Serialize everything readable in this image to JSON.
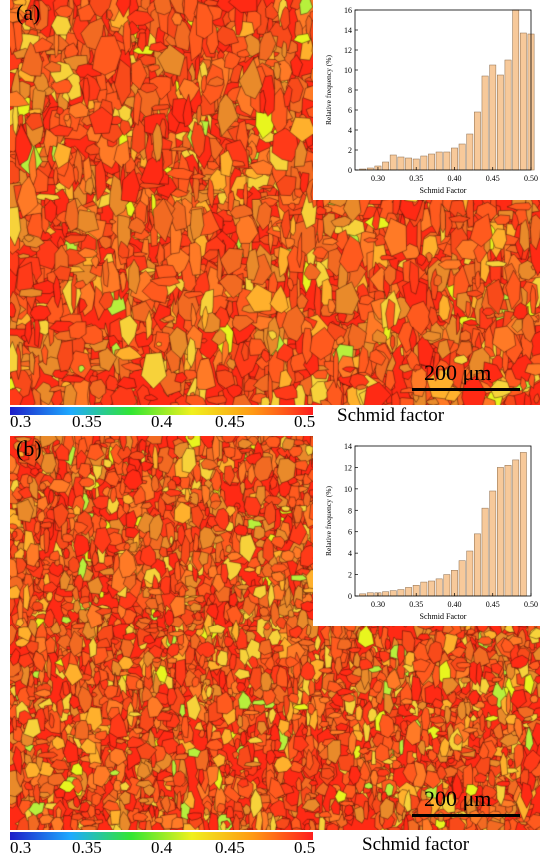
{
  "panels": [
    {
      "label": "(a)",
      "scale_bar": "200 μm",
      "chart_data": {
        "type": "bar",
        "x": [
          0.28,
          0.29,
          0.3,
          0.31,
          0.32,
          0.33,
          0.34,
          0.35,
          0.36,
          0.37,
          0.38,
          0.39,
          0.4,
          0.41,
          0.42,
          0.43,
          0.44,
          0.45,
          0.46,
          0.47,
          0.48,
          0.49,
          0.5
        ],
        "values": [
          0.1,
          0.2,
          0.4,
          0.8,
          1.5,
          1.3,
          1.2,
          1.1,
          1.4,
          1.6,
          1.8,
          1.8,
          2.2,
          2.6,
          3.6,
          5.8,
          9.4,
          10.5,
          9.5,
          11.0,
          16.0,
          13.7,
          13.6
        ],
        "xlabel": "Schmid Factor",
        "ylabel": "Relative frequency (%)",
        "xlim": [
          0.27,
          0.5
        ],
        "ylim": [
          0,
          16
        ],
        "xticks": [
          "0.30",
          "0.35",
          "0.40",
          "0.45",
          "0.50"
        ],
        "yticks": [
          "0",
          "2",
          "4",
          "6",
          "8",
          "10",
          "12",
          "14",
          "16"
        ]
      }
    },
    {
      "label": "(b)",
      "scale_bar": "200 μm",
      "chart_data": {
        "type": "bar",
        "x": [
          0.28,
          0.29,
          0.3,
          0.31,
          0.32,
          0.33,
          0.34,
          0.35,
          0.36,
          0.37,
          0.38,
          0.39,
          0.4,
          0.41,
          0.42,
          0.43,
          0.44,
          0.45,
          0.46,
          0.47,
          0.48,
          0.49
        ],
        "values": [
          0.2,
          0.3,
          0.3,
          0.4,
          0.5,
          0.6,
          0.8,
          1.0,
          1.3,
          1.4,
          1.6,
          2.0,
          2.4,
          3.3,
          4.2,
          5.8,
          8.2,
          9.8,
          12.0,
          12.2,
          12.7,
          13.4
        ],
        "xlabel": "Schmid Factor",
        "ylabel": "Relative frequency (%)",
        "xlim": [
          0.27,
          0.5
        ],
        "ylim": [
          0,
          14
        ],
        "xticks": [
          "0.30",
          "0.35",
          "0.40",
          "0.45",
          "0.50"
        ],
        "yticks": [
          "0",
          "2",
          "4",
          "6",
          "8",
          "10",
          "12",
          "14"
        ]
      }
    }
  ],
  "colorbar": {
    "title": "Schmid factor",
    "ticks": [
      "0.3",
      "0.35",
      "0.4",
      "0.45",
      "0.5"
    ],
    "colors": [
      "#1e1ec8",
      "#1eaaff",
      "#32e632",
      "#f0f01e",
      "#ff9a14",
      "#ff1e1e"
    ]
  },
  "map_colors": [
    "#ff2a14",
    "#ff3a18",
    "#f84a1a",
    "#ff5a1e",
    "#f26a22",
    "#ff7a26",
    "#e98a2a",
    "#ffb02c",
    "#f7d23a",
    "#e8f51e",
    "#b7f03c"
  ],
  "bar_color": "#f7c99a"
}
